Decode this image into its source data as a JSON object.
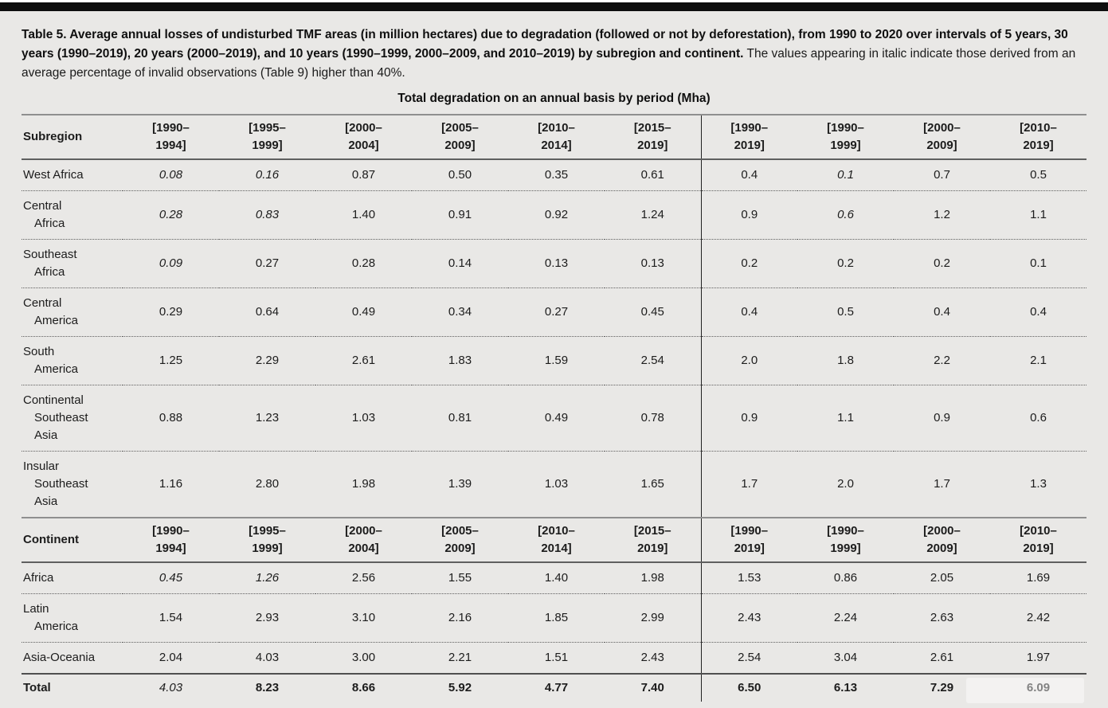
{
  "caption": {
    "bold": "Table 5. Average annual losses of undisturbed TMF areas (in million hectares) due to degradation (followed or not by deforestation), from 1990 to 2020 over intervals of 5 years, 30 years (1990–2019), 20 years (2000–2019), and 10 years (1990–1999, 2000–2009, and 2010–2019) by subregion and continent.",
    "normal": "The values appearing in italic indicate those derived from an average percentage of invalid observations (Table 9) higher than 40%."
  },
  "table": {
    "spanning_header": "Total degradation on an annual basis by period (Mha)",
    "period_headers": [
      "[1990–1994]",
      "[1995–1999]",
      "[2000–2004]",
      "[2005–2009]",
      "[2010–2014]",
      "[2015–2019]",
      "[1990–2019]",
      "[1990–1999]",
      "[2000–2009]",
      "[2010–2019]"
    ],
    "divider_before_column_index": 6,
    "sections": [
      {
        "label_header": "Subregion",
        "rows": [
          {
            "label_lines": [
              "West Africa"
            ],
            "values": [
              "0.08",
              "0.16",
              "0.87",
              "0.50",
              "0.35",
              "0.61",
              "0.4",
              "0.1",
              "0.7",
              "0.5"
            ],
            "italics": [
              true,
              true,
              false,
              false,
              false,
              false,
              false,
              true,
              false,
              false
            ]
          },
          {
            "label_lines": [
              "Central",
              "Africa"
            ],
            "values": [
              "0.28",
              "0.83",
              "1.40",
              "0.91",
              "0.92",
              "1.24",
              "0.9",
              "0.6",
              "1.2",
              "1.1"
            ],
            "italics": [
              true,
              true,
              false,
              false,
              false,
              false,
              false,
              true,
              false,
              false
            ]
          },
          {
            "label_lines": [
              "Southeast",
              "Africa"
            ],
            "values": [
              "0.09",
              "0.27",
              "0.28",
              "0.14",
              "0.13",
              "0.13",
              "0.2",
              "0.2",
              "0.2",
              "0.1"
            ],
            "italics": [
              true,
              false,
              false,
              false,
              false,
              false,
              false,
              false,
              false,
              false
            ]
          },
          {
            "label_lines": [
              "Central",
              "America"
            ],
            "values": [
              "0.29",
              "0.64",
              "0.49",
              "0.34",
              "0.27",
              "0.45",
              "0.4",
              "0.5",
              "0.4",
              "0.4"
            ],
            "italics": [
              false,
              false,
              false,
              false,
              false,
              false,
              false,
              false,
              false,
              false
            ]
          },
          {
            "label_lines": [
              "South",
              "America"
            ],
            "values": [
              "1.25",
              "2.29",
              "2.61",
              "1.83",
              "1.59",
              "2.54",
              "2.0",
              "1.8",
              "2.2",
              "2.1"
            ],
            "italics": [
              false,
              false,
              false,
              false,
              false,
              false,
              false,
              false,
              false,
              false
            ]
          },
          {
            "label_lines": [
              "Continental",
              "Southeast",
              "Asia"
            ],
            "values": [
              "0.88",
              "1.23",
              "1.03",
              "0.81",
              "0.49",
              "0.78",
              "0.9",
              "1.1",
              "0.9",
              "0.6"
            ],
            "italics": [
              false,
              false,
              false,
              false,
              false,
              false,
              false,
              false,
              false,
              false
            ]
          },
          {
            "label_lines": [
              "Insular",
              "Southeast",
              "Asia"
            ],
            "values": [
              "1.16",
              "2.80",
              "1.98",
              "1.39",
              "1.03",
              "1.65",
              "1.7",
              "2.0",
              "1.7",
              "1.3"
            ],
            "italics": [
              false,
              false,
              false,
              false,
              false,
              false,
              false,
              false,
              false,
              false
            ]
          }
        ]
      },
      {
        "label_header": "Continent",
        "rows": [
          {
            "label_lines": [
              "Africa"
            ],
            "values": [
              "0.45",
              "1.26",
              "2.56",
              "1.55",
              "1.40",
              "1.98",
              "1.53",
              "0.86",
              "2.05",
              "1.69"
            ],
            "italics": [
              true,
              true,
              false,
              false,
              false,
              false,
              false,
              false,
              false,
              false
            ]
          },
          {
            "label_lines": [
              "Latin",
              "America"
            ],
            "values": [
              "1.54",
              "2.93",
              "3.10",
              "2.16",
              "1.85",
              "2.99",
              "2.43",
              "2.24",
              "2.63",
              "2.42"
            ],
            "italics": [
              false,
              false,
              false,
              false,
              false,
              false,
              false,
              false,
              false,
              false
            ]
          },
          {
            "label_lines": [
              "Asia-Oceania"
            ],
            "values": [
              "2.04",
              "4.03",
              "3.00",
              "2.21",
              "1.51",
              "2.43",
              "2.54",
              "3.04",
              "2.61",
              "1.97"
            ],
            "italics": [
              false,
              false,
              false,
              false,
              false,
              false,
              false,
              false,
              false,
              false
            ]
          },
          {
            "label_lines": [
              "Total"
            ],
            "bold": true,
            "values": [
              "4.03",
              "8.23",
              "8.66",
              "5.92",
              "4.77",
              "7.40",
              "6.50",
              "6.13",
              "7.29",
              "6.09"
            ],
            "italics": [
              true,
              false,
              false,
              false,
              false,
              false,
              false,
              false,
              false,
              false
            ]
          }
        ]
      }
    ]
  }
}
